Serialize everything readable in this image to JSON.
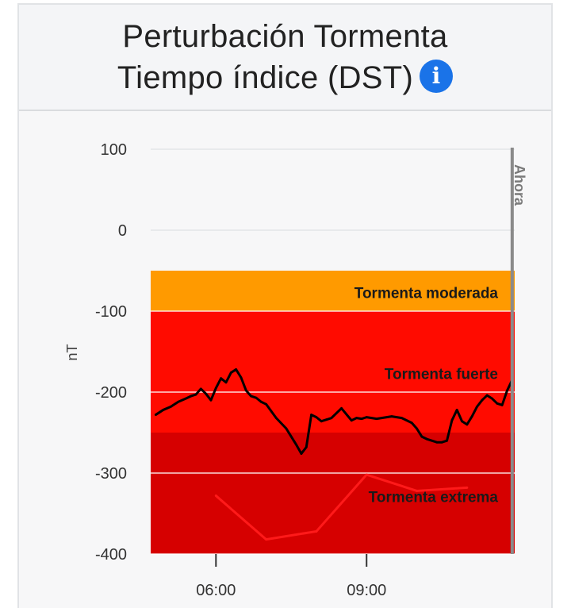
{
  "header": {
    "title_line1": "Perturbación Tormenta",
    "title_line2": "Tiempo índice (DST)",
    "info_icon": "info-icon"
  },
  "colors": {
    "moderate": "#ff9a00",
    "strong": "#ff0b00",
    "extreme": "#d60000",
    "line": "#000000",
    "forecast": "#ff1a1a",
    "now_line": "#8a8a8a"
  },
  "chart_data": {
    "type": "line",
    "title": "Perturbación Tormenta Tiempo índice (DST)",
    "xlabel": "",
    "ylabel": "nT",
    "ylim": [
      -400,
      100
    ],
    "yticks": [
      "100",
      "0",
      "-100",
      "-200",
      "-300",
      "-400"
    ],
    "yticks_values": [
      100,
      0,
      -100,
      -200,
      -300,
      -400
    ],
    "xticks": [
      "06:00",
      "09:00"
    ],
    "xticks_hours": [
      6,
      9
    ],
    "xlim_hours": [
      4.7,
      11.95
    ],
    "now_label": "Ahora",
    "now_hour": 11.9,
    "grid": true,
    "bands": [
      {
        "label": "Tormenta moderada",
        "from": -50,
        "to": -100
      },
      {
        "label": "Tormenta fuerte",
        "from": -100,
        "to": -250
      },
      {
        "label": "Tormenta extrema",
        "from": -250,
        "to": -400
      }
    ],
    "series": [
      {
        "x": [
          4.8,
          4.95,
          5.1,
          5.25,
          5.4,
          5.5,
          5.6,
          5.7,
          5.8,
          5.9,
          6.0,
          6.1,
          6.2,
          6.3,
          6.4,
          6.5,
          6.6,
          6.7,
          6.8,
          6.9,
          7.0,
          7.2,
          7.4,
          7.6,
          7.7,
          7.8,
          7.9,
          8.0,
          8.1,
          8.2,
          8.3,
          8.5,
          8.7,
          8.8,
          8.9,
          9.0,
          9.2,
          9.5,
          9.7,
          9.9,
          10.0,
          10.1,
          10.2,
          10.4,
          10.5,
          10.6,
          10.7,
          10.8,
          10.9,
          11.0,
          11.1,
          11.2,
          11.3,
          11.4,
          11.5,
          11.6,
          11.7,
          11.8,
          11.9
        ],
        "values": [
          -228,
          -222,
          -218,
          -212,
          -208,
          -205,
          -203,
          -196,
          -202,
          -210,
          -195,
          -183,
          -188,
          -176,
          -172,
          -182,
          -198,
          -205,
          -207,
          -212,
          -215,
          -232,
          -245,
          -265,
          -276,
          -268,
          -228,
          -231,
          -236,
          -234,
          -232,
          -220,
          -235,
          -232,
          -233,
          -231,
          -233,
          -230,
          -232,
          -238,
          -245,
          -255,
          -258,
          -262,
          -262,
          -260,
          -235,
          -222,
          -236,
          -240,
          -230,
          -218,
          -210,
          -204,
          -208,
          -214,
          -216,
          -198,
          -185
        ]
      }
    ],
    "forecast": {
      "x": [
        6.0,
        7.0,
        8.0,
        9.0,
        10.0,
        11.0
      ],
      "values": [
        -328,
        -382,
        -372,
        -302,
        -322,
        -318
      ]
    }
  }
}
